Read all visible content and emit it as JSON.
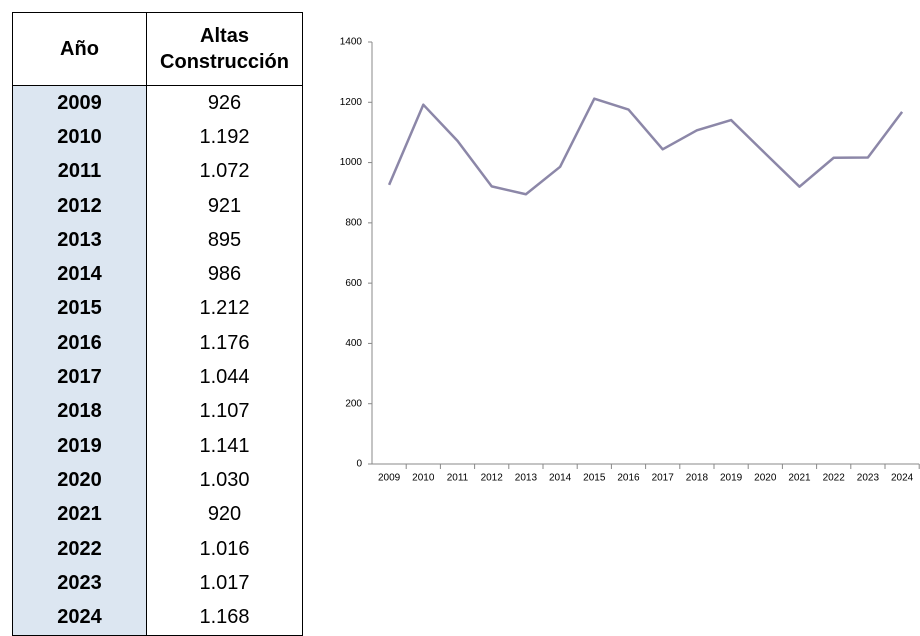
{
  "table": {
    "headers": [
      [
        "Año"
      ],
      [
        "Altas",
        "Construcción"
      ]
    ],
    "rows": [
      [
        "2009",
        "926"
      ],
      [
        "2010",
        "1.192"
      ],
      [
        "2011",
        "1.072"
      ],
      [
        "2012",
        "921"
      ],
      [
        "2013",
        "895"
      ],
      [
        "2014",
        "986"
      ],
      [
        "2015",
        "1.212"
      ],
      [
        "2016",
        "1.176"
      ],
      [
        "2017",
        "1.044"
      ],
      [
        "2018",
        "1.107"
      ],
      [
        "2019",
        "1.141"
      ],
      [
        "2020",
        "1.030"
      ],
      [
        "2021",
        "920"
      ],
      [
        "2022",
        "1.016"
      ],
      [
        "2023",
        "1.017"
      ],
      [
        "2024",
        "1.168"
      ]
    ]
  },
  "chart_data": {
    "type": "line",
    "categories": [
      "2009",
      "2010",
      "2011",
      "2012",
      "2013",
      "2014",
      "2015",
      "2016",
      "2017",
      "2018",
      "2019",
      "2020",
      "2021",
      "2022",
      "2023",
      "2024"
    ],
    "values": [
      926,
      1192,
      1072,
      921,
      895,
      986,
      1212,
      1176,
      1044,
      1107,
      1141,
      1030,
      920,
      1016,
      1017,
      1168
    ],
    "color": "#8c87a8",
    "ylim": [
      0,
      1400
    ],
    "yticks": [
      0,
      200,
      400,
      600,
      800,
      1000,
      1200,
      1400
    ],
    "grid": false
  }
}
